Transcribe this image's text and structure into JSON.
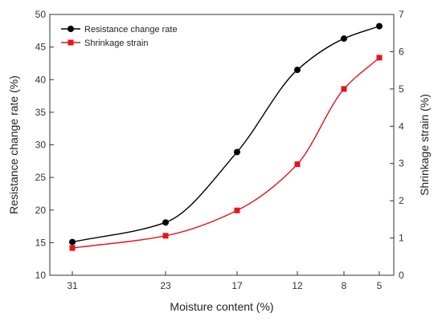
{
  "chart_data": {
    "type": "line",
    "xlabel": "Moisture content (%)",
    "ylabel": "Resistance change rate (%)",
    "y2label": "Shrinkage strain (%)",
    "categories": [
      "31",
      "23",
      "17",
      "12",
      "8",
      "5"
    ],
    "x": [
      31,
      23,
      17,
      12,
      8,
      5
    ],
    "x_axis_reversed": true,
    "ylim": [
      10,
      50
    ],
    "yticks": [
      "10",
      "15",
      "20",
      "25",
      "30",
      "35",
      "40",
      "45",
      "50"
    ],
    "y2lim": [
      0,
      7
    ],
    "y2ticks": [
      "0",
      "1",
      "2",
      "3",
      "4",
      "5",
      "6",
      "7"
    ],
    "grid": false,
    "legend_position": "top-left",
    "series": [
      {
        "name": "Resistance change rate",
        "axis": "left",
        "color": "#000000",
        "marker": "circle",
        "values": [
          15.1,
          18.1,
          28.9,
          41.5,
          46.3,
          48.2
        ]
      },
      {
        "name": "Shrinkage strain",
        "axis": "right",
        "color": "#e8131b",
        "marker": "square",
        "values": [
          0.73,
          1.06,
          1.74,
          2.98,
          5.0,
          5.84
        ]
      }
    ]
  }
}
